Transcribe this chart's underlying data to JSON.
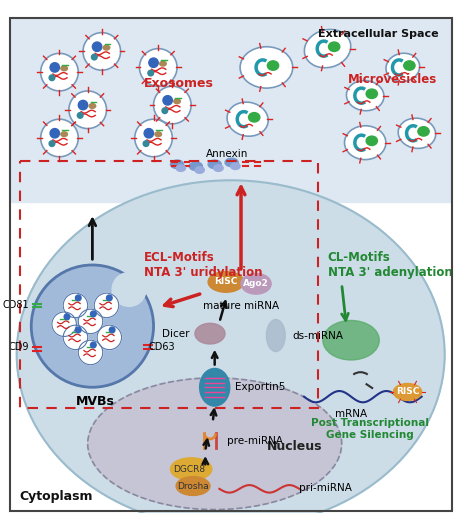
{
  "bg_color": "#ffffff",
  "labels": {
    "extracellular_space": "Extracellular Space",
    "exosomes": "Exosomes",
    "microvesicles": "Microvesicles",
    "annexin": "Annexin",
    "ecl_motifs": "ECL-Motifs\nNTA 3' uridylation",
    "cl_motifs": "CL-Motifs\nNTA 3' adenylation",
    "mature_mirna": "mature miRNA",
    "ds_mirna": "ds-miRNA",
    "dicer": "Dicer",
    "exportin5": "Exportin5",
    "pre_mirna": "pre-miRNA",
    "dgcr8_drosha": "DGCR8\nDrosha",
    "pri_mirna": "pri-miRNA",
    "nucleus": "Nucleus",
    "cytoplasm": "Cytoplasm",
    "mvbs": "MVBs",
    "cd81": "CD81",
    "cd63": "CD63",
    "cd9": "CD9",
    "risc": "RISC",
    "ago2": "Ago2",
    "mrna": "mRNA",
    "risc2": "RISC",
    "post_transcriptional": "Post Transcriptional\nGene Silencing"
  }
}
